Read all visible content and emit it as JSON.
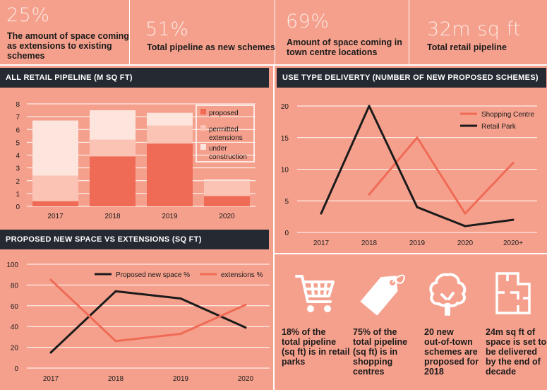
{
  "stats": [
    {
      "value": "25%",
      "text": [
        "The amount of space coming",
        "as extensions to existing",
        "schemes"
      ]
    },
    {
      "value": "51%",
      "text": [
        "Total pipeline as new schemes"
      ]
    },
    {
      "value": "69%",
      "text": [
        "Amount of space coming in",
        "town centre locations"
      ]
    },
    {
      "value": "32m sq ft",
      "text": [
        "Total retail pipeline"
      ]
    }
  ],
  "banners": {
    "pipeline": "ALL RETAIL PIPELINE (M SQ FT)",
    "use_type": "USE TYPE DELIVERTY (NUMBER OF NEW PROPOSED SCHEMES)",
    "proposed": "PROPOSED NEW SPACE VS EXTENSIONS (SQ FT)"
  },
  "colors": {
    "background": "#f5a08c",
    "proposed": "#ef6b56",
    "permitted": "#fac3b4",
    "construction": "#fde4dc",
    "dark": "#1b1b1b",
    "salmon_line": "#ef6b56",
    "banner": "#252932"
  },
  "chart_data": [
    {
      "type": "bar",
      "stacked": true,
      "title": "ALL RETAIL PIPELINE (M SQ FT)",
      "categories": [
        "2017",
        "2018",
        "2019",
        "2020"
      ],
      "series": [
        {
          "name": "proposed",
          "values": [
            0.4,
            3.9,
            4.9,
            0.8
          ]
        },
        {
          "name": "permitted extensions",
          "values": [
            2.0,
            1.3,
            1.4,
            1.2
          ]
        },
        {
          "name": "under construction",
          "values": [
            4.3,
            2.3,
            1.0,
            0.1
          ]
        }
      ],
      "legend": [
        [
          "proposed"
        ],
        [
          "permitted",
          "extensions"
        ],
        [
          "under",
          "construction"
        ]
      ],
      "yticks": [
        "0",
        "1",
        "2",
        "3",
        "4",
        "5",
        "6",
        "7",
        "8"
      ],
      "ylim": [
        0,
        8
      ],
      "legend_position": "top-right"
    },
    {
      "type": "line",
      "title": "USE TYPE DELIVERTY (NUMBER OF NEW PROPOSED SCHEMES)",
      "categories": [
        "2017",
        "2018",
        "2019",
        "2020",
        "2020+"
      ],
      "series": [
        {
          "name": "Shopping Centre",
          "values": [
            null,
            6,
            15,
            3,
            11
          ]
        },
        {
          "name": "Retail Park",
          "values": [
            3,
            20,
            4,
            1,
            2
          ]
        }
      ],
      "yticks": [
        "0",
        "5",
        "10",
        "15",
        "20"
      ],
      "ylim": [
        0,
        20
      ],
      "legend_position": "top-right"
    },
    {
      "type": "line",
      "title": "PROPOSED NEW SPACE VS EXTENSIONS (SQ FT)",
      "categories": [
        "2017",
        "2018",
        "2019",
        "2020"
      ],
      "series": [
        {
          "name": "Proposed new space %",
          "values": [
            15,
            74,
            67,
            39
          ]
        },
        {
          "name": "extensions %",
          "values": [
            85,
            26,
            33,
            61
          ]
        }
      ],
      "yticks": [
        "0",
        "20",
        "40",
        "60",
        "80",
        "100"
      ],
      "ylim": [
        0,
        100
      ],
      "legend_position": "top"
    }
  ],
  "icons": [
    {
      "icon": "shopping-cart-icon",
      "text": [
        "18% of the",
        "total pipeline",
        "(sq ft) is in retail",
        "parks"
      ]
    },
    {
      "icon": "price-tag-icon",
      "text": [
        "75% of the",
        "total pipeline",
        "(sq ft) is in",
        "shopping",
        "centres"
      ]
    },
    {
      "icon": "tree-icon",
      "text": [
        "20 new",
        "out-of-town",
        "schemes are",
        "proposed for",
        "2018"
      ]
    },
    {
      "icon": "floor-plan-icon",
      "text": [
        "24m sq ft of",
        "space is set to",
        "be delivered",
        "by the end of",
        "decade"
      ]
    }
  ]
}
